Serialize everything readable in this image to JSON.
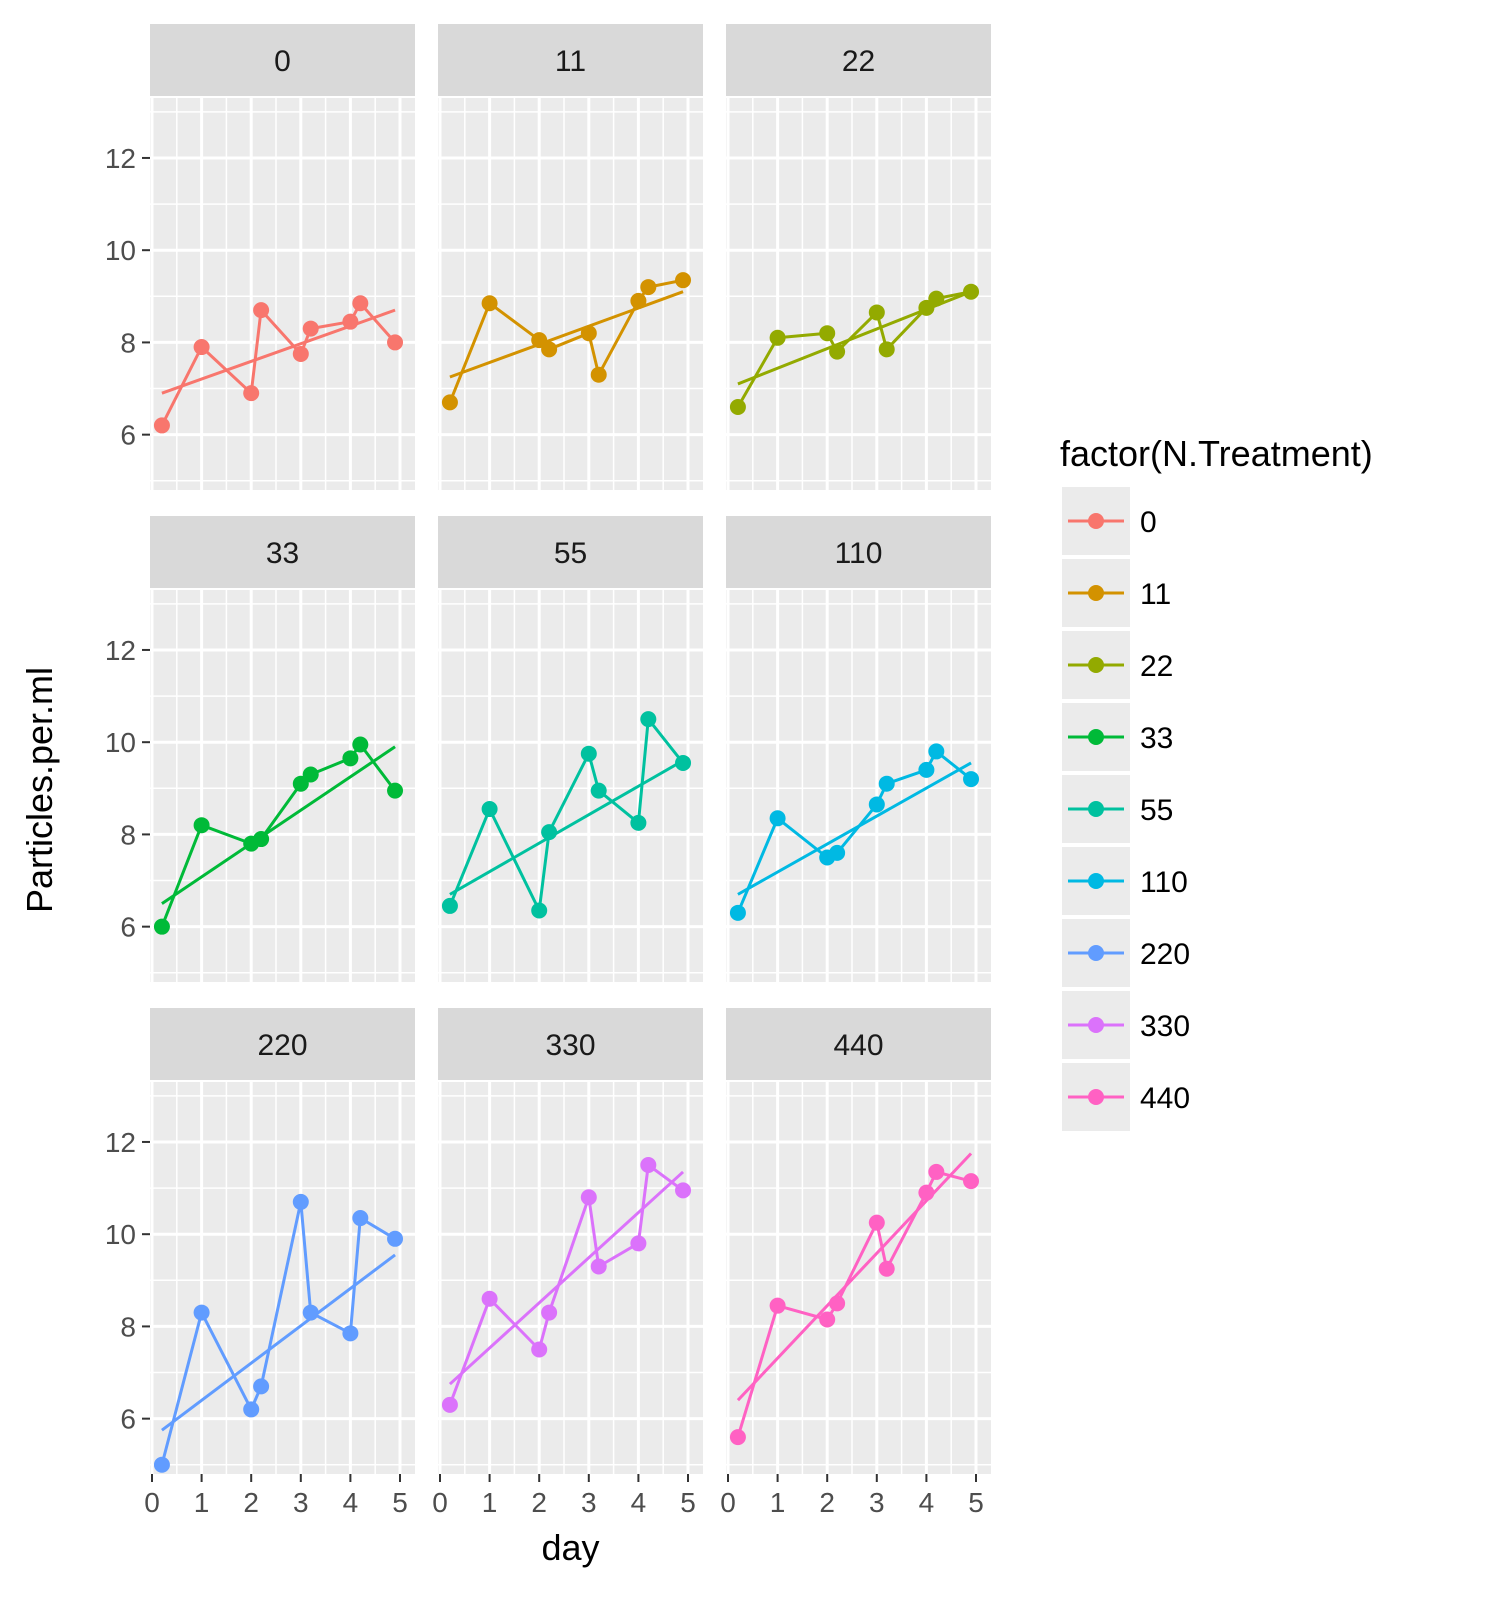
{
  "chart_data": {
    "type": "line",
    "facet_by": "N.Treatment",
    "xlabel": "day",
    "ylabel": "Particles.per.ml",
    "xlim": [
      0,
      5
    ],
    "ylim": [
      4.8,
      13.3
    ],
    "x_ticks": [
      "0",
      "1",
      "2",
      "3",
      "4",
      "5"
    ],
    "y_ticks": [
      "6",
      "8",
      "10",
      "12"
    ],
    "grid": true,
    "legend": {
      "title": "factor(N.Treatment)",
      "position": "right",
      "entries": [
        "0",
        "11",
        "22",
        "33",
        "55",
        "110",
        "220",
        "330",
        "440"
      ]
    },
    "x": [
      0.2,
      1.0,
      2.0,
      2.2,
      3.0,
      3.2,
      4.0,
      4.2,
      4.9
    ],
    "panels": [
      {
        "label": "0",
        "color": "#F8766D",
        "values": [
          6.2,
          7.9,
          6.9,
          8.7,
          7.75,
          8.3,
          8.45,
          8.85,
          8.0
        ],
        "trend": [
          6.9,
          8.7
        ]
      },
      {
        "label": "11",
        "color": "#D39200",
        "values": [
          6.7,
          8.85,
          8.05,
          7.85,
          8.2,
          7.3,
          8.9,
          9.2,
          9.35
        ],
        "trend": [
          7.25,
          9.1
        ]
      },
      {
        "label": "22",
        "color": "#93AA00",
        "values": [
          6.6,
          8.1,
          8.2,
          7.8,
          8.65,
          7.85,
          8.75,
          8.95,
          9.1
        ],
        "trend": [
          7.1,
          9.1
        ]
      },
      {
        "label": "33",
        "color": "#00BA38",
        "values": [
          6.0,
          8.2,
          7.8,
          7.9,
          9.1,
          9.3,
          9.65,
          9.95,
          8.95
        ],
        "trend": [
          6.5,
          9.9
        ]
      },
      {
        "label": "55",
        "color": "#00C19F",
        "values": [
          6.45,
          8.55,
          6.35,
          8.05,
          9.75,
          8.95,
          8.25,
          10.5,
          9.55
        ],
        "trend": [
          6.7,
          9.6
        ]
      },
      {
        "label": "110",
        "color": "#00B9E3",
        "values": [
          6.3,
          8.35,
          7.5,
          7.6,
          8.65,
          9.1,
          9.4,
          9.8,
          9.2
        ],
        "trend": [
          6.7,
          9.55
        ]
      },
      {
        "label": "220",
        "color": "#619CFF",
        "values": [
          5.0,
          8.3,
          6.2,
          6.7,
          10.7,
          8.3,
          7.85,
          10.35,
          9.9
        ],
        "trend": [
          5.75,
          9.55
        ]
      },
      {
        "label": "330",
        "color": "#DB72FB",
        "values": [
          6.3,
          8.6,
          7.5,
          8.3,
          10.8,
          9.3,
          9.8,
          11.5,
          10.95
        ],
        "trend": [
          6.75,
          11.35
        ]
      },
      {
        "label": "440",
        "color": "#FF61C3",
        "values": [
          5.6,
          8.45,
          8.15,
          8.5,
          10.25,
          9.25,
          10.9,
          11.35,
          11.15
        ],
        "trend": [
          6.4,
          11.75
        ]
      }
    ]
  }
}
